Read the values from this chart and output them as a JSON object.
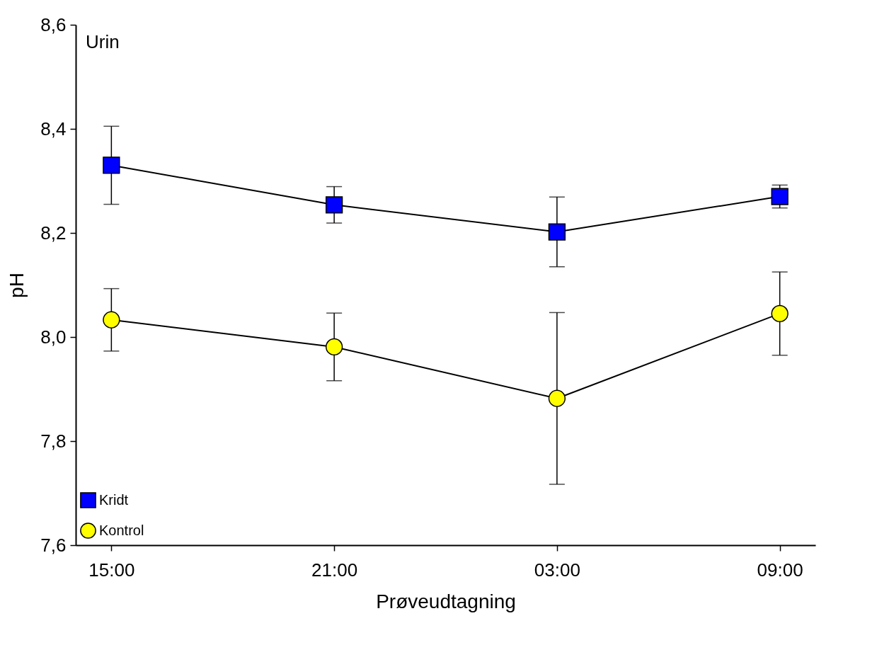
{
  "chart_data": {
    "type": "line",
    "xlabel": "Prøveudtagning",
    "ylabel": "pH",
    "annotations": [
      "Urin"
    ],
    "categories": [
      "15:00",
      "21:00",
      "03:00",
      "09:00"
    ],
    "ylim": [
      7.6,
      8.6
    ],
    "yticks": [
      {
        "value": 7.6,
        "label": "7,6"
      },
      {
        "value": 7.8,
        "label": "7,8"
      },
      {
        "value": 8.0,
        "label": "8,0"
      },
      {
        "value": 8.2,
        "label": "8,2"
      },
      {
        "value": 8.4,
        "label": "8,4"
      },
      {
        "value": 8.6,
        "label": "8,6"
      }
    ],
    "grid": false,
    "legend": "bottom left",
    "line_style": "solid",
    "series": [
      {
        "name": "Kridt",
        "color": "#0000ff",
        "marker": "square",
        "values": [
          8.33,
          8.254,
          8.202,
          8.27
        ],
        "errors": [
          0.075,
          0.035,
          0.067,
          0.022
        ]
      },
      {
        "name": "Kontrol",
        "color": "#ffff00",
        "marker": "circle",
        "values": [
          8.033,
          7.981,
          7.882,
          8.045
        ],
        "errors": [
          0.06,
          0.065,
          0.165,
          0.08
        ]
      }
    ]
  }
}
